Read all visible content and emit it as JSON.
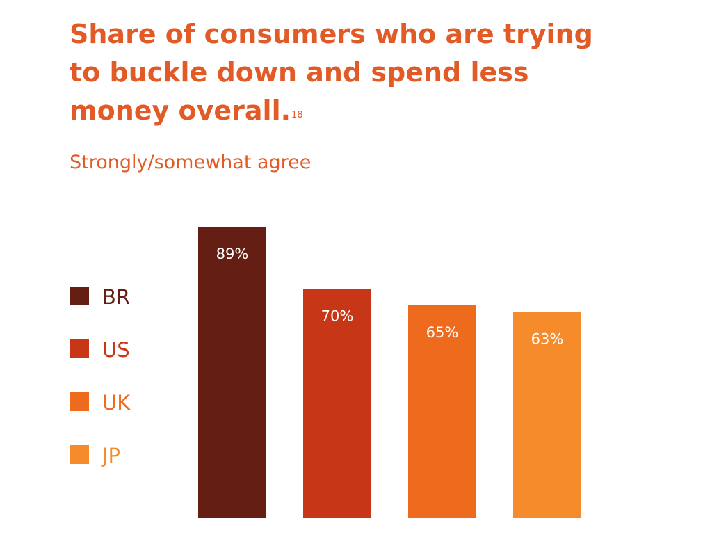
{
  "title": {
    "text": "Share of consumers who are trying to buckle down and spend less money overall.",
    "line1": "Share of consumers who are trying",
    "line2": "to buckle down and spend less",
    "line3": "money overall.",
    "footnote": "18"
  },
  "subtitle": "Strongly/somewhat agree",
  "colors": {
    "title": "#e25a26",
    "BR": "#641e14",
    "US": "#c73616",
    "UK": "#ee6a1c",
    "JP": "#f68b2b"
  },
  "chart_data": {
    "type": "bar",
    "title": "Share of consumers who are trying to buckle down and spend less money overall.",
    "subtitle": "Strongly/somewhat agree",
    "categories": [
      "BR",
      "US",
      "UK",
      "JP"
    ],
    "values": [
      89,
      70,
      65,
      63
    ],
    "value_labels": [
      "89%",
      "70%",
      "65%",
      "63%"
    ],
    "colors": [
      "#641e14",
      "#c73616",
      "#ee6a1c",
      "#f68b2b"
    ],
    "ylim": [
      0,
      89
    ],
    "grid": false,
    "legend": {
      "placement": "left",
      "entries": [
        "BR",
        "US",
        "UK",
        "JP"
      ]
    },
    "xlabel": "",
    "ylabel": ""
  }
}
